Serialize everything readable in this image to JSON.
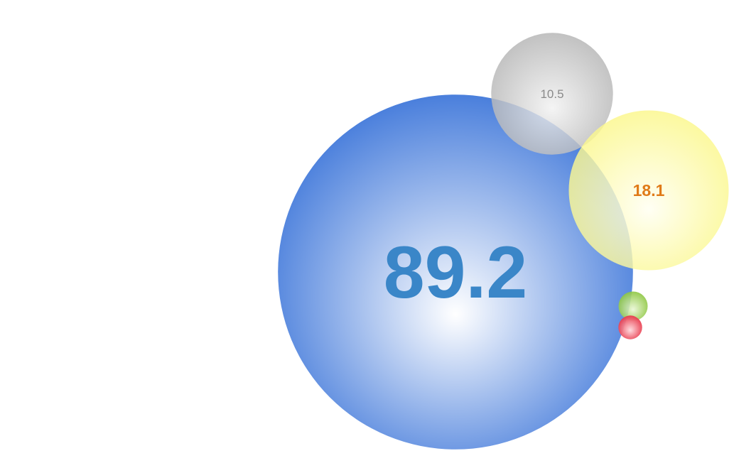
{
  "chart_data": {
    "type": "bubble",
    "title": "",
    "xlabel": "",
    "ylabel": "",
    "grid": false,
    "legend": "none",
    "bubbles": [
      {
        "value": 89.2,
        "label": "89.2",
        "color": "#4a7fdc",
        "highlight": "#ffffff",
        "label_color": "#3a86c8"
      },
      {
        "value": 10.5,
        "label": "10.5",
        "color": "#b4b4b4",
        "highlight": "#f2f2f2",
        "label_color": "#8a8a8a"
      },
      {
        "value": 18.1,
        "label": "18.1",
        "color": "#fbf78a",
        "highlight": "#fffff2",
        "label_color": "#e07b18"
      },
      {
        "value": 0.6,
        "label": "",
        "color": "#8cc63f",
        "highlight": "#eaf7d6",
        "label_color": "#5a8a1f"
      },
      {
        "value": 0.4,
        "label": "",
        "color": "#e8384a",
        "highlight": "#ffd9dd",
        "label_color": "#a01a28"
      }
    ]
  }
}
